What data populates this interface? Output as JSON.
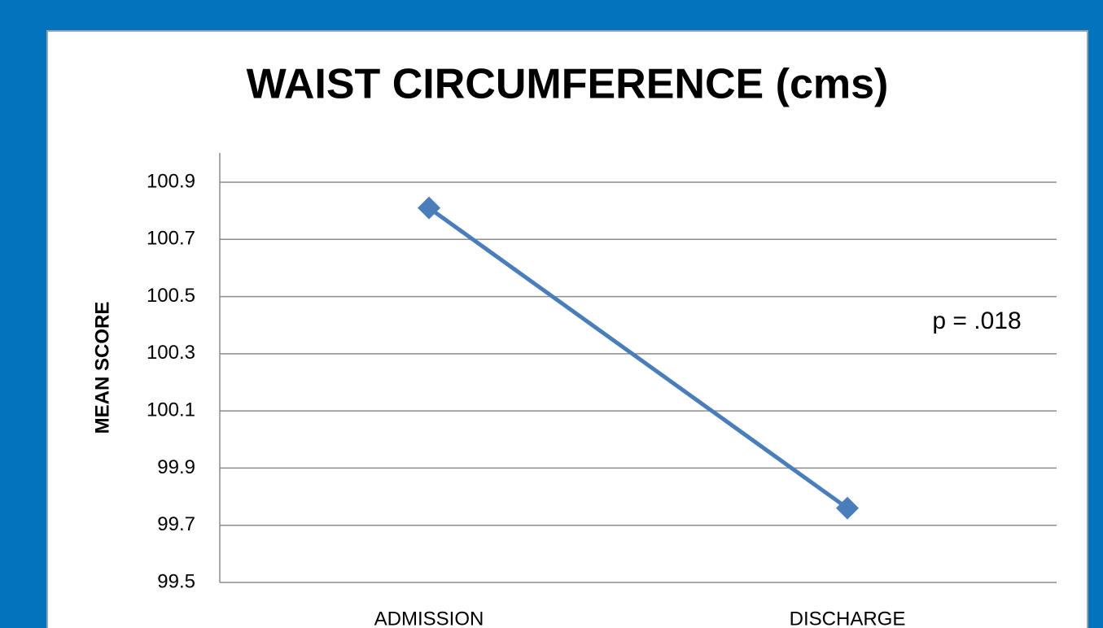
{
  "chart_data": {
    "type": "line",
    "title": "WAIST CIRCUMFERENCE (cms)",
    "y_label": "MEAN SCORE",
    "annotation": "p = .018",
    "categories": [
      "ADMISSION",
      "DISCHARGE"
    ],
    "series": [
      {
        "name": "Mean score",
        "color": "#4a7ebb",
        "values": [
          100.81,
          99.76
        ]
      }
    ],
    "ylim": [
      99.5,
      100.9
    ],
    "yticks": [
      99.5,
      99.7,
      99.9,
      100.1,
      100.3,
      100.5,
      100.7,
      100.9
    ],
    "grid": true
  }
}
